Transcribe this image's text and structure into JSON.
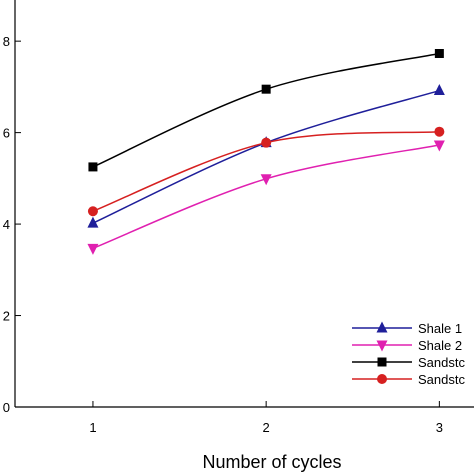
{
  "chart_data": {
    "type": "line",
    "title": "",
    "xlabel": "Number of cycles",
    "ylabel": "",
    "x": [
      1,
      2,
      3
    ],
    "x_ticks": [
      "1",
      "2",
      "3"
    ],
    "y_ticks": [
      "0",
      "2",
      "4",
      "6",
      "8"
    ],
    "xlim": [
      0.55,
      3.2
    ],
    "ylim": [
      0,
      8.9
    ],
    "grid": false,
    "legend_position": "bottom-right",
    "series": [
      {
        "name": "Shale 1",
        "color": "#1f1f9a",
        "marker": "triangle-up",
        "values": [
          4.02,
          5.78,
          6.92
        ]
      },
      {
        "name": "Shale 2",
        "color": "#e020b0",
        "marker": "triangle-down",
        "values": [
          3.47,
          4.99,
          5.73
        ]
      },
      {
        "name": "Sandstc",
        "color": "#000000",
        "marker": "square",
        "values": [
          5.25,
          6.95,
          7.73
        ]
      },
      {
        "name": "Sandstc",
        "color": "#d62020",
        "marker": "circle",
        "values": [
          4.28,
          5.78,
          6.02
        ]
      }
    ]
  }
}
